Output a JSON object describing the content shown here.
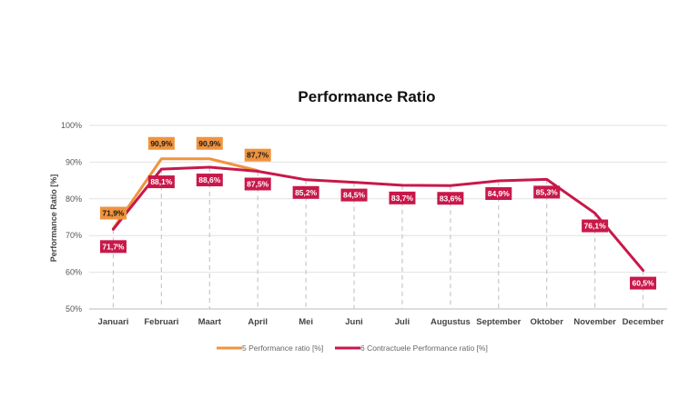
{
  "chart_data": {
    "type": "line",
    "title": "Performance Ratio",
    "ylabel": "Performance Ratio [%]",
    "xlabel": "",
    "ylim": [
      50,
      100
    ],
    "yticks": [
      {
        "value": 50,
        "label": "50%"
      },
      {
        "value": 60,
        "label": "60%"
      },
      {
        "value": 70,
        "label": "70%"
      },
      {
        "value": 80,
        "label": "80%"
      },
      {
        "value": 90,
        "label": "90%"
      },
      {
        "value": 100,
        "label": "100%"
      }
    ],
    "grid": true,
    "legend": "bottom",
    "categories": [
      "Januari",
      "Februari",
      "Maart",
      "April",
      "Mei",
      "Juni",
      "Juli",
      "Augustus",
      "September",
      "Oktober",
      "November",
      "December"
    ],
    "series": [
      {
        "name": "5 Performance ratio [%]",
        "color": "#f0933e",
        "values": [
          71.9,
          90.9,
          90.9,
          87.7,
          null,
          null,
          null,
          null,
          null,
          null,
          null,
          null
        ],
        "labels": [
          "71,9%",
          "90,9%",
          "90,9%",
          "87,7%",
          null,
          null,
          null,
          null,
          null,
          null,
          null,
          null
        ]
      },
      {
        "name": "6 Contractuele Performance ratio  [%]",
        "color": "#c8184a",
        "values": [
          71.7,
          88.1,
          88.6,
          87.5,
          85.2,
          84.5,
          83.7,
          83.6,
          84.9,
          85.3,
          76.1,
          60.5
        ],
        "labels": [
          "71,7%",
          "88,1%",
          "88,6%",
          "87,5%",
          "85,2%",
          "84,5%",
          "83,7%",
          "83,6%",
          "84,9%",
          "85,3%",
          "76,1%",
          "60,5%"
        ]
      }
    ]
  }
}
